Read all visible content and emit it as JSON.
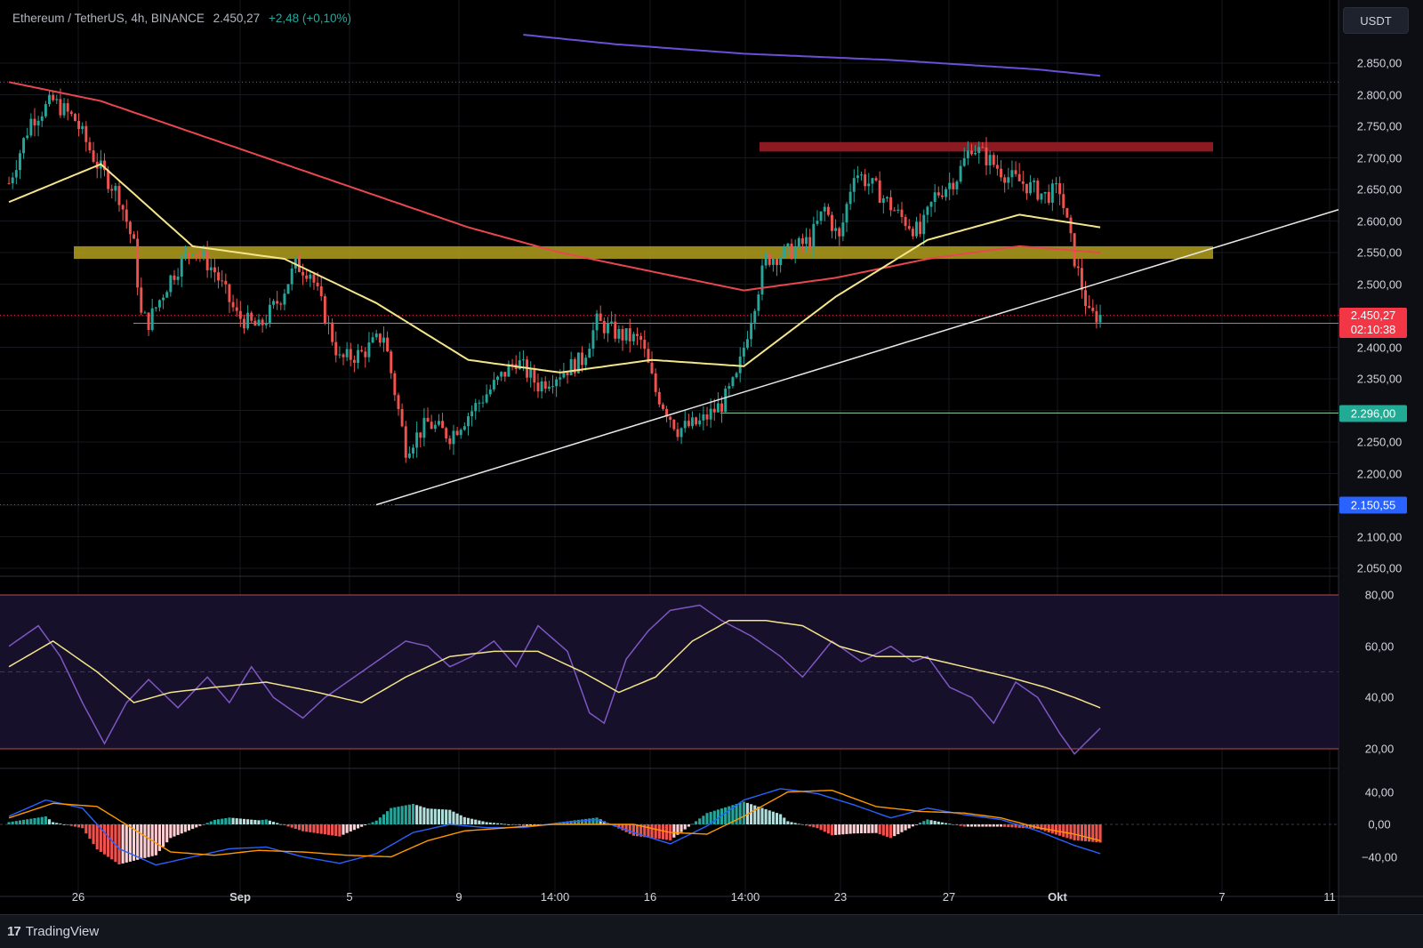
{
  "header": {
    "symbol": "Ethereum / TetherUS, 4h, BINANCE",
    "price": "2.450,27",
    "change": "+2,48 (+0,10%)"
  },
  "currency_button": {
    "label": "USDT"
  },
  "price_axis": {
    "labels": [
      "2.850,00",
      "2.800,00",
      "2.750,00",
      "2.700,00",
      "2.650,00",
      "2.600,00",
      "2.550,00",
      "2.500,00",
      "2.400,00",
      "2.350,00",
      "2.250,00",
      "2.200,00",
      "2.100,00",
      "2.050,00"
    ],
    "badges": {
      "last_price": {
        "value": "2.450,27",
        "countdown": "02:10:38",
        "color": "#f23645"
      },
      "support": {
        "value": "2.296,00",
        "color": "#22ab94"
      },
      "low": {
        "value": "2.150,55",
        "color": "#2962ff"
      }
    }
  },
  "rsi_axis": {
    "labels": [
      "80,00",
      "60,00",
      "40,00",
      "20,00"
    ]
  },
  "macd_axis": {
    "labels": [
      "40,00",
      "0,00",
      "−40,00"
    ]
  },
  "time_axis": {
    "labels": [
      {
        "text": "26",
        "bold": false
      },
      {
        "text": "Sep",
        "bold": true
      },
      {
        "text": "5",
        "bold": false
      },
      {
        "text": "9",
        "bold": false
      },
      {
        "text": "14:00",
        "bold": false
      },
      {
        "text": "16",
        "bold": false
      },
      {
        "text": "14:00",
        "bold": false
      },
      {
        "text": "23",
        "bold": false
      },
      {
        "text": "27",
        "bold": false
      },
      {
        "text": "Okt",
        "bold": true
      },
      {
        "text": "7",
        "bold": false
      },
      {
        "text": "11",
        "bold": false
      }
    ]
  },
  "footer": {
    "brand": "TradingView",
    "logo_mark": "17"
  },
  "colors": {
    "up": "#26a69a",
    "down": "#ef5350",
    "ma_yellow": "#f5e58a",
    "ma_red": "#e8474f",
    "ma_purple": "#6b4fd8",
    "resistance_zone": "#8b1a22",
    "support_zone": "#a8971c",
    "rsi_line": "#7e57c2",
    "rsi_signal": "#f5e58a",
    "macd_line": "#2962ff",
    "signal_line": "#ff9800"
  },
  "chart_data": {
    "type": "candlestick",
    "symbol": "ETH/USDT",
    "timeframe": "4h",
    "y_range": [
      2030,
      2895
    ],
    "path_keypoints": [
      [
        0,
        2660
      ],
      [
        6,
        2760
      ],
      [
        12,
        2790
      ],
      [
        18,
        2760
      ],
      [
        24,
        2690
      ],
      [
        30,
        2640
      ],
      [
        34,
        2560
      ],
      [
        36,
        2450
      ],
      [
        38,
        2440
      ],
      [
        44,
        2510
      ],
      [
        50,
        2560
      ],
      [
        56,
        2520
      ],
      [
        62,
        2450
      ],
      [
        68,
        2430
      ],
      [
        74,
        2480
      ],
      [
        78,
        2530
      ],
      [
        82,
        2520
      ],
      [
        86,
        2450
      ],
      [
        90,
        2380
      ],
      [
        96,
        2390
      ],
      [
        102,
        2420
      ],
      [
        108,
        2240
      ],
      [
        114,
        2280
      ],
      [
        120,
        2260
      ],
      [
        126,
        2300
      ],
      [
        132,
        2340
      ],
      [
        138,
        2380
      ],
      [
        144,
        2340
      ],
      [
        150,
        2360
      ],
      [
        156,
        2380
      ],
      [
        160,
        2440
      ],
      [
        166,
        2420
      ],
      [
        172,
        2410
      ],
      [
        176,
        2330
      ],
      [
        182,
        2270
      ],
      [
        188,
        2280
      ],
      [
        194,
        2310
      ],
      [
        198,
        2350
      ],
      [
        202,
        2450
      ],
      [
        206,
        2540
      ],
      [
        212,
        2550
      ],
      [
        218,
        2570
      ],
      [
        222,
        2620
      ],
      [
        226,
        2570
      ],
      [
        230,
        2680
      ],
      [
        236,
        2650
      ],
      [
        242,
        2610
      ],
      [
        248,
        2580
      ],
      [
        252,
        2640
      ],
      [
        258,
        2670
      ],
      [
        262,
        2720
      ],
      [
        268,
        2690
      ],
      [
        272,
        2670
      ],
      [
        276,
        2660
      ],
      [
        282,
        2640
      ],
      [
        286,
        2650
      ],
      [
        290,
        2540
      ],
      [
        294,
        2450
      ],
      [
        297,
        2450
      ]
    ],
    "moving_averages": {
      "ma_yellow": [
        [
          0,
          2630
        ],
        [
          25,
          2690
        ],
        [
          50,
          2560
        ],
        [
          75,
          2540
        ],
        [
          100,
          2470
        ],
        [
          125,
          2380
        ],
        [
          150,
          2360
        ],
        [
          175,
          2380
        ],
        [
          200,
          2370
        ],
        [
          225,
          2480
        ],
        [
          250,
          2570
        ],
        [
          275,
          2610
        ],
        [
          297,
          2590
        ]
      ],
      "ma_red": [
        [
          0,
          2820
        ],
        [
          25,
          2790
        ],
        [
          50,
          2740
        ],
        [
          75,
          2690
        ],
        [
          100,
          2640
        ],
        [
          125,
          2590
        ],
        [
          150,
          2550
        ],
        [
          175,
          2520
        ],
        [
          200,
          2490
        ],
        [
          225,
          2510
        ],
        [
          250,
          2540
        ],
        [
          275,
          2560
        ],
        [
          297,
          2550
        ]
      ],
      "ma_purple": [
        [
          140,
          2895
        ],
        [
          165,
          2880
        ],
        [
          200,
          2865
        ],
        [
          240,
          2855
        ],
        [
          280,
          2840
        ],
        [
          297,
          2830
        ]
      ]
    },
    "zones": {
      "resistance": [
        2710,
        2725
      ],
      "support": [
        2540,
        2560
      ]
    },
    "levels": {
      "last": 2450.27,
      "support": 2296.0,
      "low": 2150.55,
      "top_dotted": 2820
    },
    "trendline": [
      [
        83,
        2150.55
      ],
      [
        290,
        2520
      ]
    ],
    "rsi": {
      "range": [
        15,
        90
      ],
      "overbought": 80,
      "oversold": 20,
      "mid": 50,
      "keypoints": [
        [
          0,
          60
        ],
        [
          8,
          68
        ],
        [
          14,
          56
        ],
        [
          20,
          38
        ],
        [
          26,
          22
        ],
        [
          32,
          38
        ],
        [
          38,
          47
        ],
        [
          46,
          36
        ],
        [
          54,
          48
        ],
        [
          60,
          38
        ],
        [
          66,
          52
        ],
        [
          72,
          40
        ],
        [
          80,
          32
        ],
        [
          86,
          40
        ],
        [
          92,
          46
        ],
        [
          100,
          54
        ],
        [
          108,
          62
        ],
        [
          114,
          60
        ],
        [
          120,
          52
        ],
        [
          126,
          56
        ],
        [
          132,
          62
        ],
        [
          138,
          52
        ],
        [
          144,
          68
        ],
        [
          152,
          58
        ],
        [
          158,
          34
        ],
        [
          162,
          30
        ],
        [
          168,
          55
        ],
        [
          174,
          66
        ],
        [
          180,
          74
        ],
        [
          188,
          76
        ],
        [
          194,
          70
        ],
        [
          202,
          64
        ],
        [
          210,
          56
        ],
        [
          216,
          48
        ],
        [
          224,
          62
        ],
        [
          232,
          54
        ],
        [
          240,
          60
        ],
        [
          246,
          54
        ],
        [
          250,
          56
        ],
        [
          256,
          44
        ],
        [
          262,
          40
        ],
        [
          268,
          30
        ],
        [
          274,
          46
        ],
        [
          280,
          40
        ],
        [
          286,
          26
        ],
        [
          290,
          18
        ],
        [
          297,
          28
        ]
      ],
      "signal_keypoints": [
        [
          0,
          52
        ],
        [
          12,
          62
        ],
        [
          24,
          50
        ],
        [
          34,
          38
        ],
        [
          44,
          42
        ],
        [
          56,
          44
        ],
        [
          70,
          46
        ],
        [
          84,
          42
        ],
        [
          96,
          38
        ],
        [
          108,
          48
        ],
        [
          120,
          56
        ],
        [
          132,
          58
        ],
        [
          144,
          58
        ],
        [
          156,
          50
        ],
        [
          166,
          42
        ],
        [
          176,
          48
        ],
        [
          186,
          62
        ],
        [
          196,
          70
        ],
        [
          206,
          70
        ],
        [
          216,
          68
        ],
        [
          226,
          60
        ],
        [
          236,
          56
        ],
        [
          248,
          56
        ],
        [
          260,
          52
        ],
        [
          272,
          48
        ],
        [
          282,
          44
        ],
        [
          290,
          40
        ],
        [
          297,
          36
        ]
      ]
    },
    "macd": {
      "range": [
        -60,
        60
      ],
      "macd_keypoints": [
        [
          0,
          10
        ],
        [
          10,
          30
        ],
        [
          20,
          20
        ],
        [
          30,
          -30
        ],
        [
          40,
          -50
        ],
        [
          50,
          -40
        ],
        [
          60,
          -30
        ],
        [
          70,
          -28
        ],
        [
          80,
          -40
        ],
        [
          90,
          -48
        ],
        [
          100,
          -36
        ],
        [
          110,
          -10
        ],
        [
          120,
          0
        ],
        [
          130,
          -4
        ],
        [
          140,
          -4
        ],
        [
          150,
          2
        ],
        [
          160,
          6
        ],
        [
          170,
          -10
        ],
        [
          180,
          -24
        ],
        [
          190,
          -2
        ],
        [
          200,
          30
        ],
        [
          210,
          44
        ],
        [
          220,
          38
        ],
        [
          230,
          24
        ],
        [
          240,
          8
        ],
        [
          250,
          20
        ],
        [
          260,
          12
        ],
        [
          270,
          6
        ],
        [
          280,
          -8
        ],
        [
          290,
          -26
        ],
        [
          297,
          -36
        ]
      ],
      "signal_keypoints": [
        [
          0,
          8
        ],
        [
          12,
          26
        ],
        [
          24,
          22
        ],
        [
          34,
          -6
        ],
        [
          44,
          -34
        ],
        [
          56,
          -38
        ],
        [
          68,
          -32
        ],
        [
          80,
          -34
        ],
        [
          92,
          -38
        ],
        [
          104,
          -40
        ],
        [
          114,
          -20
        ],
        [
          124,
          -8
        ],
        [
          136,
          -4
        ],
        [
          148,
          0
        ],
        [
          160,
          0
        ],
        [
          170,
          0
        ],
        [
          180,
          -10
        ],
        [
          190,
          -12
        ],
        [
          200,
          10
        ],
        [
          212,
          40
        ],
        [
          224,
          42
        ],
        [
          236,
          22
        ],
        [
          248,
          16
        ],
        [
          260,
          14
        ],
        [
          270,
          8
        ],
        [
          280,
          -4
        ],
        [
          290,
          -12
        ],
        [
          297,
          -20
        ]
      ]
    }
  }
}
